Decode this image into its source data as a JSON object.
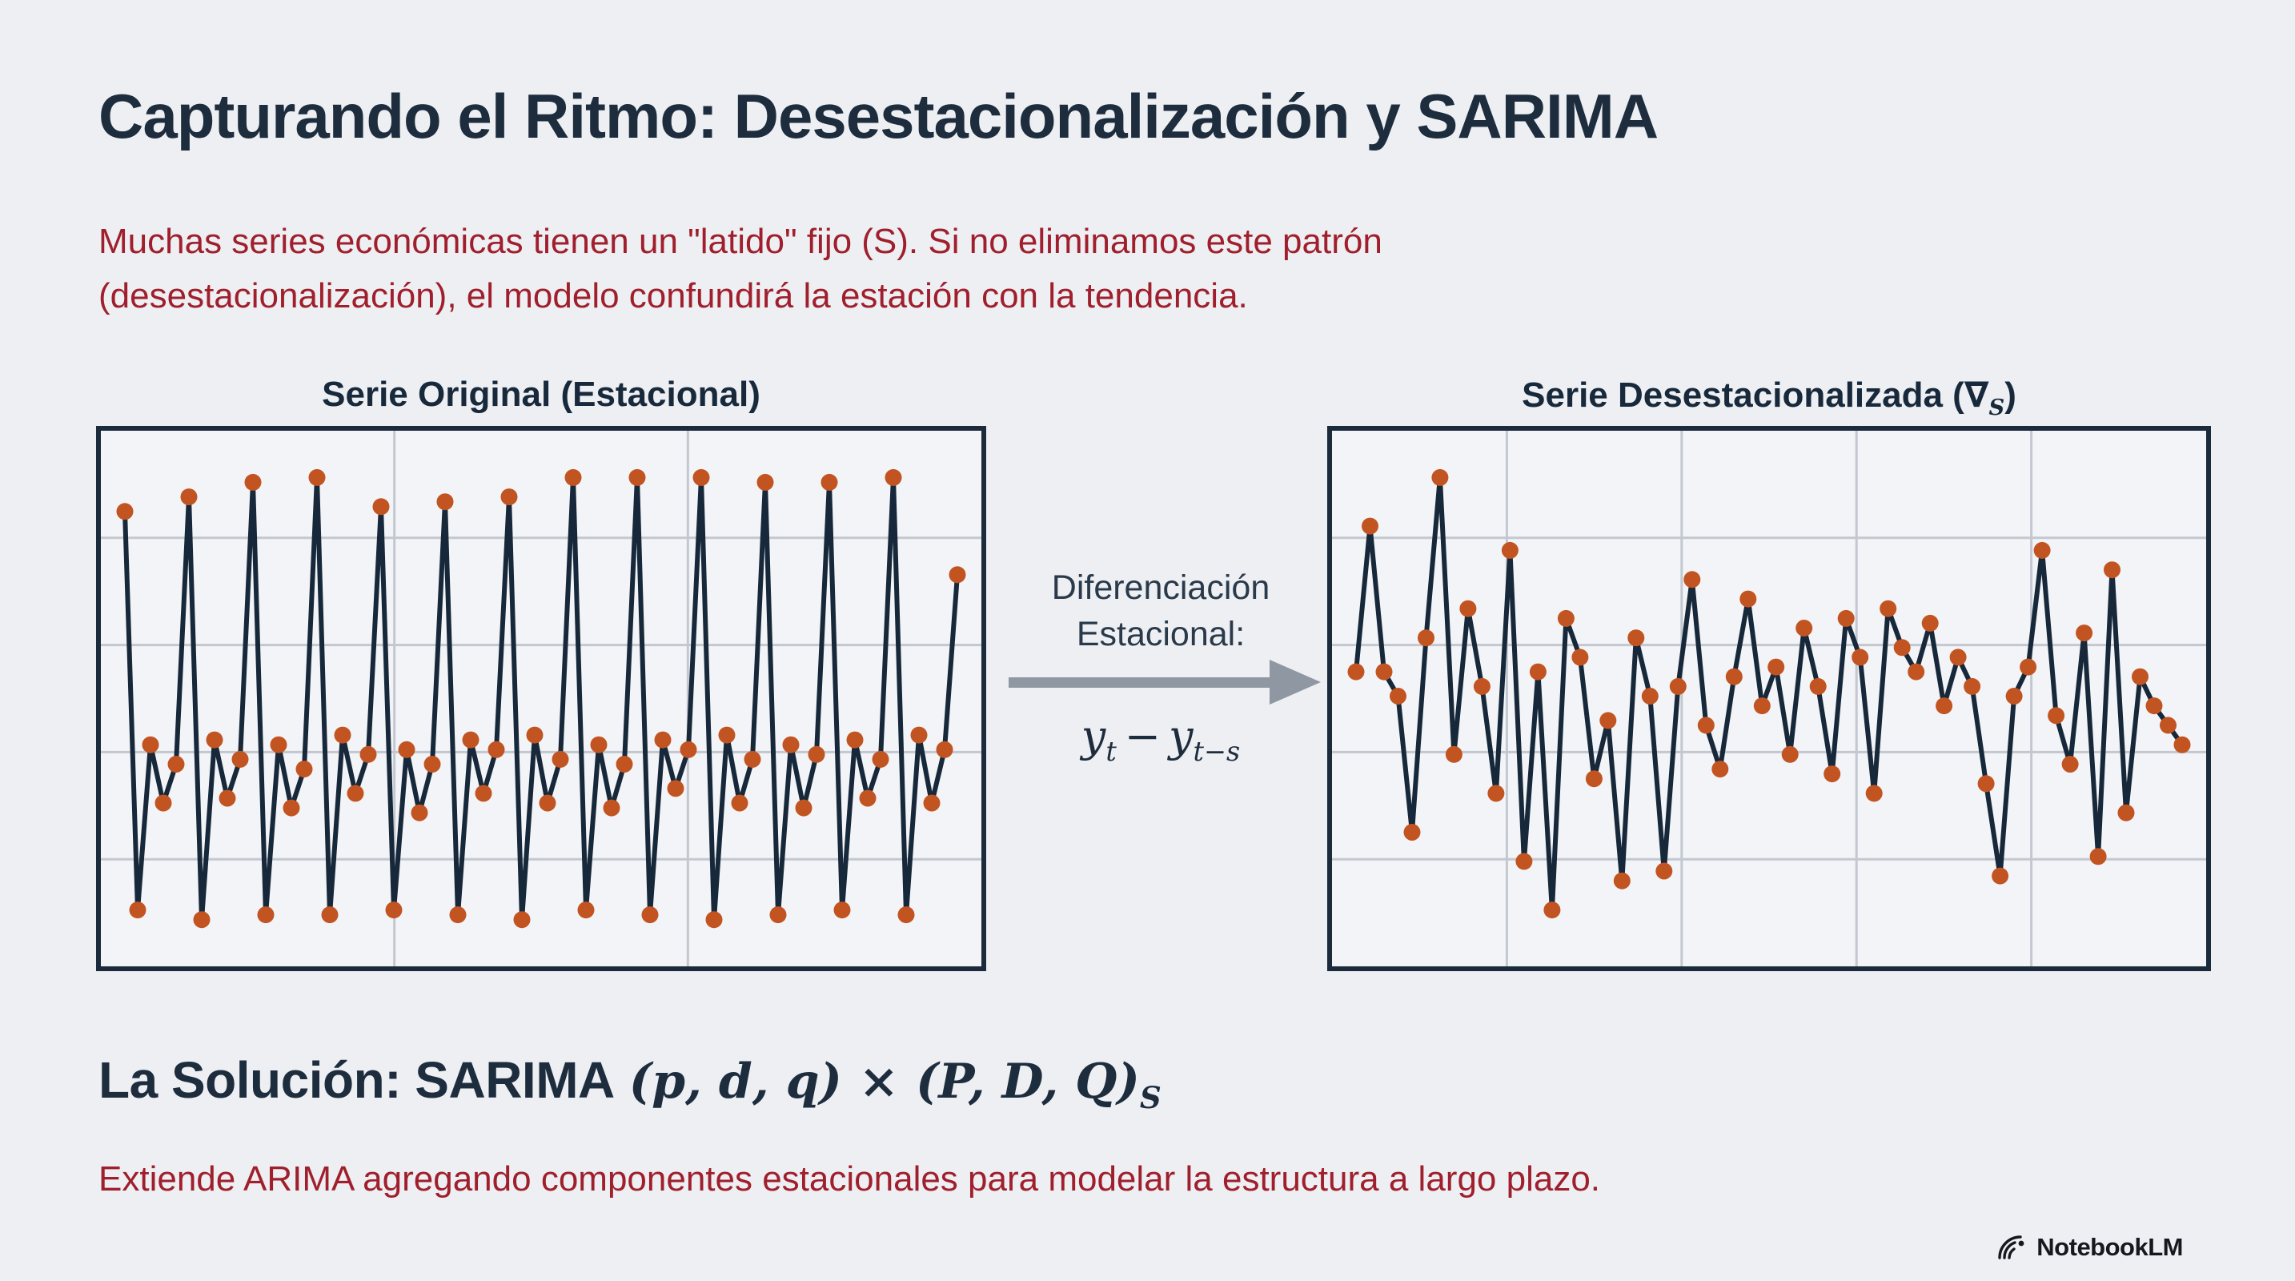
{
  "page": {
    "title": "Capturando el Ritmo: Desestacionalización y SARIMA",
    "intro_lines": [
      "Muchas series económicas tienen un \"latido\" fijo (S). Si no eliminamos este patrón",
      "(desestacionalización), el modelo confundirá la estación con la tendencia."
    ]
  },
  "charts": {
    "left_title": "Serie Original (Estacional)",
    "right_title_pre": "Serie Desestacionalizada (",
    "right_title_nabla": "∇",
    "right_title_sub": "S",
    "right_title_post": ")"
  },
  "transform": {
    "label_line1": "Diferenciación",
    "label_line2": "Estacional:",
    "formula": {
      "base1": "y",
      "sub1": "t",
      "operator": "−",
      "base2": "y",
      "sub2": "t−s"
    }
  },
  "solution": {
    "heading_prefix": "La Solución: SARIMA",
    "heading_formula": "(p, d, q) × (P, D, Q)",
    "heading_formula_sub": "S",
    "note": "Extiende ARIMA agregando componentes estacionales para modelar la estructura a largo plazo."
  },
  "footer": {
    "brand": "NotebookLM"
  },
  "colors": {
    "accent_red": "#a01f2c",
    "navy_text": "#1e2d3e",
    "page_bg": "#edeff3"
  },
  "chart_data": [
    {
      "type": "line",
      "title": "Serie Original (Estacional)",
      "xlabel": "",
      "ylabel": "",
      "axis_labels_visible": false,
      "legend": false,
      "ylim": [
        0,
        1
      ],
      "grid": {
        "v": 2,
        "h": 4
      },
      "line_color": "#16283a",
      "marker_color": "#c25422",
      "grid_color": "#c3c8d0",
      "values": [
        0.88,
        0.06,
        0.4,
        0.28,
        0.36,
        0.91,
        0.04,
        0.41,
        0.29,
        0.37,
        0.94,
        0.05,
        0.4,
        0.27,
        0.35,
        0.95,
        0.05,
        0.42,
        0.3,
        0.38,
        0.89,
        0.06,
        0.39,
        0.26,
        0.36,
        0.9,
        0.05,
        0.41,
        0.3,
        0.39,
        0.91,
        0.04,
        0.42,
        0.28,
        0.37,
        0.95,
        0.06,
        0.4,
        0.27,
        0.36,
        0.95,
        0.05,
        0.41,
        0.31,
        0.39,
        0.95,
        0.04,
        0.42,
        0.28,
        0.37,
        0.94,
        0.05,
        0.4,
        0.27,
        0.38,
        0.94,
        0.06,
        0.41,
        0.29,
        0.37,
        0.95,
        0.05,
        0.42,
        0.28,
        0.39,
        0.75
      ]
    },
    {
      "type": "line",
      "title": "Serie Desestacionalizada (∇S)",
      "xlabel": "",
      "ylabel": "",
      "axis_labels_visible": false,
      "legend": false,
      "ylim": [
        0,
        1
      ],
      "grid": {
        "v": 4,
        "h": 4
      },
      "line_color": "#16283a",
      "marker_color": "#c25422",
      "grid_color": "#c3c8d0",
      "values": [
        0.55,
        0.85,
        0.55,
        0.5,
        0.22,
        0.62,
        0.95,
        0.38,
        0.68,
        0.52,
        0.3,
        0.8,
        0.16,
        0.55,
        0.06,
        0.66,
        0.58,
        0.33,
        0.45,
        0.12,
        0.62,
        0.5,
        0.14,
        0.52,
        0.74,
        0.44,
        0.35,
        0.54,
        0.7,
        0.48,
        0.56,
        0.38,
        0.64,
        0.52,
        0.34,
        0.66,
        0.58,
        0.3,
        0.68,
        0.6,
        0.55,
        0.65,
        0.48,
        0.58,
        0.52,
        0.32,
        0.13,
        0.5,
        0.56,
        0.8,
        0.46,
        0.36,
        0.63,
        0.17,
        0.76,
        0.26,
        0.54,
        0.48,
        0.44,
        0.4
      ]
    }
  ]
}
